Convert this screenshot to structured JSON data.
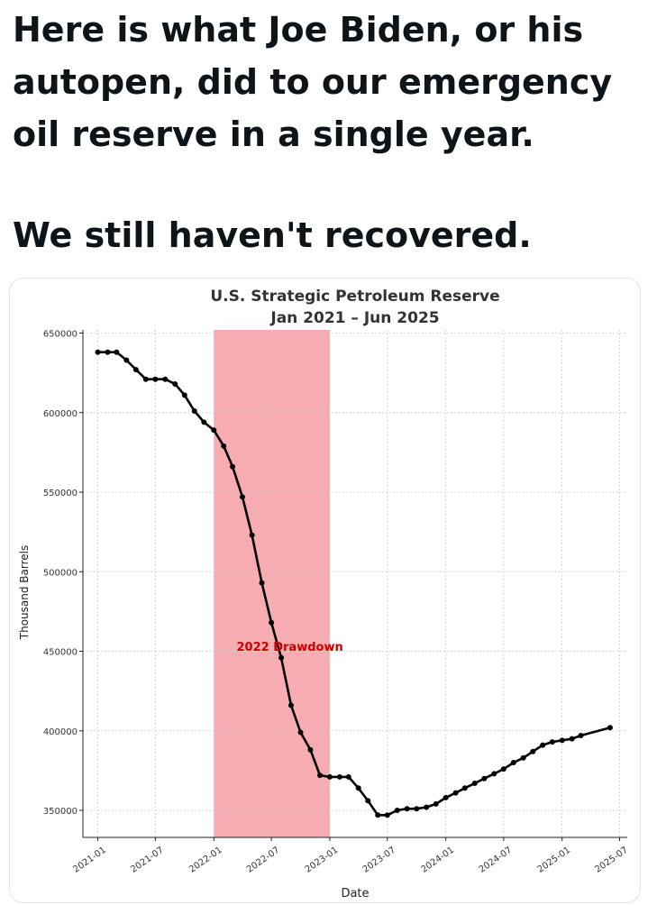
{
  "post": {
    "line1": "Here is what Joe Biden, or his autopen, did to our emergency oil reserve in a single year.",
    "line2": "We still haven't recovered."
  },
  "chart_data": {
    "type": "line",
    "title": "U.S. Strategic Petroleum Reserve",
    "subtitle": "Jan 2021 – Jun 2025",
    "xlabel": "Date",
    "ylabel": "Thousand Barrels",
    "xlim": [
      "2020-11-15",
      "2025-07-25"
    ],
    "ylim": [
      333000,
      652000
    ],
    "grid": true,
    "yticks": [
      350000,
      400000,
      450000,
      500000,
      550000,
      600000,
      650000
    ],
    "xticks": [
      "2021-01",
      "2021-07",
      "2022-01",
      "2022-07",
      "2023-01",
      "2023-07",
      "2024-01",
      "2024-07",
      "2025-01",
      "2025-07"
    ],
    "highlight": {
      "label": "2022 Drawdown",
      "start": "2022-01",
      "end": "2023-01",
      "color": "#f7a8ad"
    },
    "line_color": "#000000",
    "annotation_color": "#cc0000",
    "series": [
      {
        "x": [
          "2021-01",
          "2021-02",
          "2021-03",
          "2021-04",
          "2021-05",
          "2021-06",
          "2021-07",
          "2021-08",
          "2021-09",
          "2021-10",
          "2021-11",
          "2021-12",
          "2022-01",
          "2022-02",
          "2022-03",
          "2022-04",
          "2022-05",
          "2022-06",
          "2022-07",
          "2022-08",
          "2022-09",
          "2022-10",
          "2022-11",
          "2022-12",
          "2023-01",
          "2023-02",
          "2023-03",
          "2023-04",
          "2023-05",
          "2023-06",
          "2023-07",
          "2023-08",
          "2023-09",
          "2023-10",
          "2023-11",
          "2023-12",
          "2024-01",
          "2024-02",
          "2024-03",
          "2024-04",
          "2024-05",
          "2024-06",
          "2024-07",
          "2024-08",
          "2024-09",
          "2024-10",
          "2024-11",
          "2024-12",
          "2025-01",
          "2025-02",
          "2025-03",
          "2025-06"
        ],
        "values": [
          638000,
          638000,
          638000,
          633000,
          627000,
          621000,
          621000,
          621000,
          618000,
          611000,
          601000,
          594000,
          589000,
          579000,
          566000,
          547000,
          523000,
          493000,
          468000,
          446000,
          416000,
          399000,
          388000,
          372000,
          371000,
          371000,
          371000,
          364000,
          356000,
          347000,
          347000,
          350000,
          351000,
          351000,
          352000,
          354000,
          358000,
          361000,
          364000,
          367000,
          370000,
          373000,
          376000,
          380000,
          383000,
          387000,
          391000,
          393000,
          394000,
          395000,
          397000,
          402000
        ]
      }
    ]
  }
}
